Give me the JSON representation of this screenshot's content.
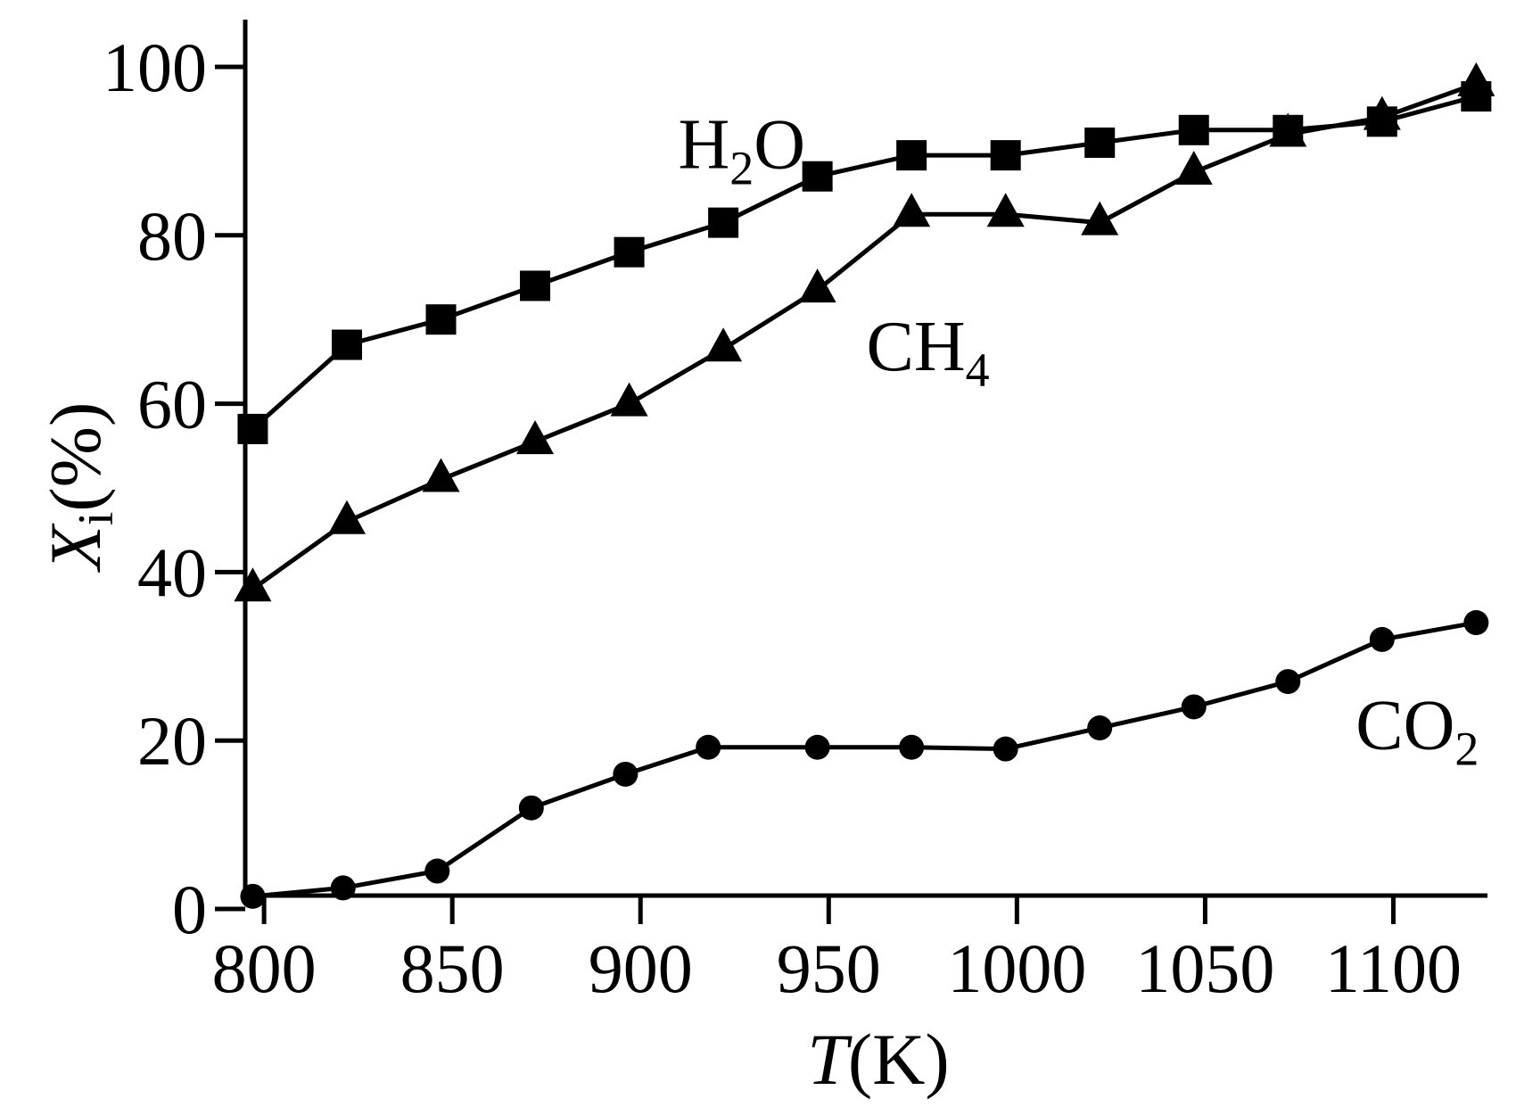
{
  "chart_data": {
    "type": "line",
    "xlabel": {
      "var": "T",
      "unit": "(K)"
    },
    "ylabel": {
      "var": "X",
      "sub": "i",
      "unit": "(%)"
    },
    "xlim": [
      795,
      1125
    ],
    "ylim": [
      0,
      100
    ],
    "xticks": [
      800,
      850,
      900,
      950,
      1000,
      1050,
      1100
    ],
    "yticks": [
      0,
      20,
      40,
      60,
      80,
      100
    ],
    "grid": false,
    "series": [
      {
        "name": "H₂O",
        "marker": "square",
        "label": {
          "base": "H",
          "sub": "2",
          "rest": "O",
          "at": [
            910,
            88
          ]
        },
        "x": [
          797,
          822,
          847,
          872,
          897,
          922,
          947,
          972,
          997,
          1022,
          1047,
          1072,
          1097,
          1122
        ],
        "y": [
          57,
          67,
          70,
          74,
          78,
          81.5,
          87,
          89.5,
          89.5,
          91,
          92.5,
          92.5,
          93.5,
          96.5
        ]
      },
      {
        "name": "CH₄",
        "marker": "triangle",
        "label": {
          "base": "CH",
          "sub": "4",
          "rest": "",
          "at": [
            960,
            64
          ]
        },
        "x": [
          797,
          822,
          847,
          872,
          897,
          922,
          947,
          972,
          997,
          1022,
          1047,
          1072,
          1097,
          1122
        ],
        "y": [
          38,
          46,
          51,
          55.5,
          60,
          66.5,
          73.5,
          82.5,
          82.5,
          81.5,
          87.5,
          92,
          94,
          98
        ]
      },
      {
        "name": "CO₂",
        "marker": "circle",
        "label": {
          "base": "CO",
          "sub": "2",
          "rest": "",
          "at": [
            1090,
            19
          ]
        },
        "x": [
          797,
          821,
          846,
          871,
          896,
          918,
          947,
          972,
          997,
          1022,
          1047,
          1072,
          1097,
          1122
        ],
        "y": [
          1.5,
          2.5,
          4.5,
          12,
          16,
          19.2,
          19.2,
          19.2,
          19,
          21.5,
          24,
          27,
          32,
          34
        ]
      }
    ]
  }
}
